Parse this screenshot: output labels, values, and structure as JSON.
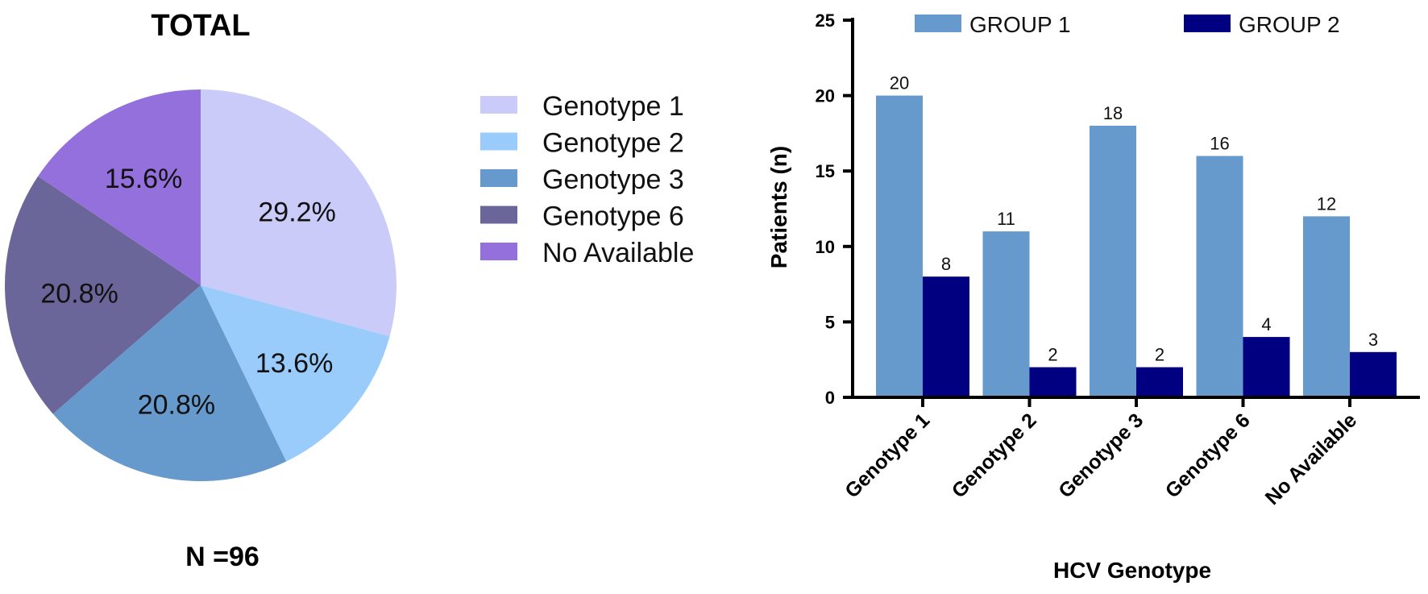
{
  "chart_data": [
    {
      "type": "pie",
      "title": "TOTAL",
      "footer": "N =96",
      "categories": [
        "Genotype  1",
        "Genotype  2",
        "Genotype  3",
        "Genotype  6",
        "No Available"
      ],
      "values": [
        29.2,
        13.6,
        20.8,
        20.8,
        15.6
      ],
      "value_labels": [
        "29.2%",
        "13.6%",
        "20.8%",
        "20.8%",
        "15.6%"
      ],
      "colors": [
        "#cbcbfa",
        "#99ccfa",
        "#6699cc",
        "#6a6699",
        "#9370db"
      ],
      "legend_position": "right"
    },
    {
      "type": "bar",
      "xlabel": "HCV Genotype",
      "ylabel": "Patients (n)",
      "ylim": [
        0,
        25
      ],
      "yticks": [
        "0",
        "5",
        "10",
        "15",
        "20",
        "25"
      ],
      "categories": [
        "Genotype 1",
        "Genotype 2",
        "Genotype 3",
        "Genotype 6",
        "No Available"
      ],
      "series": [
        {
          "name": "GROUP 1",
          "values": [
            20,
            11,
            18,
            16,
            12
          ],
          "color": "#6699cc"
        },
        {
          "name": "GROUP 2",
          "values": [
            8,
            2,
            2,
            4,
            3
          ],
          "color": "#000080"
        }
      ],
      "legend_position": "top"
    }
  ]
}
